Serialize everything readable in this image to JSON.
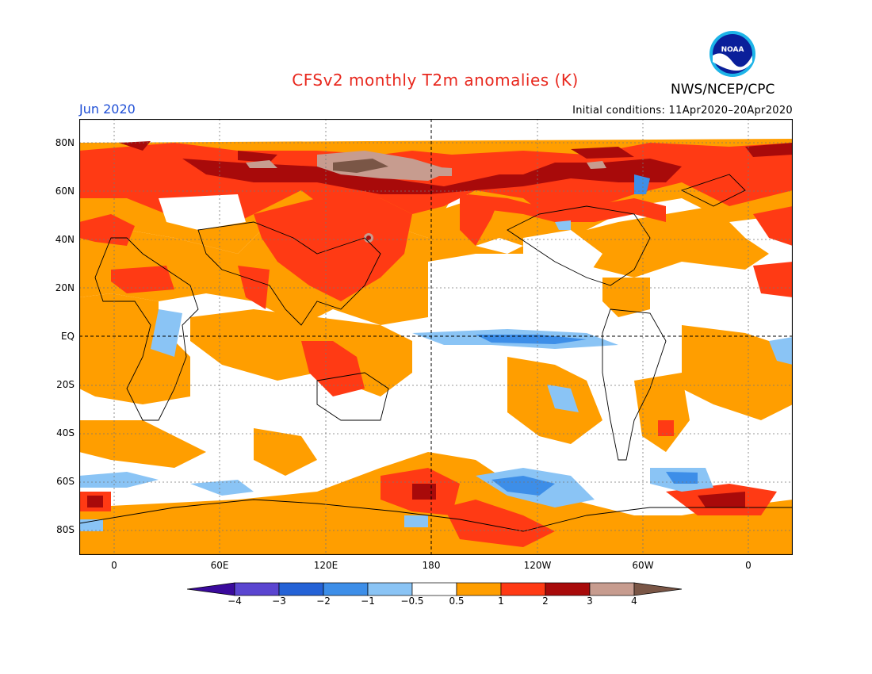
{
  "title": "CFSv2 monthly T2m anomalies (K)",
  "agency": "NWS/NCEP/CPC",
  "logo_text": "NOAA",
  "month": "Jun 2020",
  "initial_conditions": "Initial conditions: 11Apr2020–20Apr2020",
  "lat_labels": [
    "80N",
    "60N",
    "40N",
    "20N",
    "EQ",
    "20S",
    "40S",
    "60S",
    "80S"
  ],
  "lon_labels": [
    "0",
    "60E",
    "120E",
    "180",
    "120W",
    "60W",
    "0"
  ],
  "legend": {
    "labels": [
      "−4",
      "−3",
      "−2",
      "−1",
      "−0.5",
      "0.5",
      "1",
      "2",
      "3",
      "4"
    ],
    "colors": [
      "#3a0a9c",
      "#5a45d0",
      "#2462d6",
      "#3d8ee8",
      "#8ac4f5",
      "#ffffff",
      "#ff9e00",
      "#ff3a14",
      "#a80a0a",
      "#c79c8f",
      "#7a5646"
    ]
  }
}
